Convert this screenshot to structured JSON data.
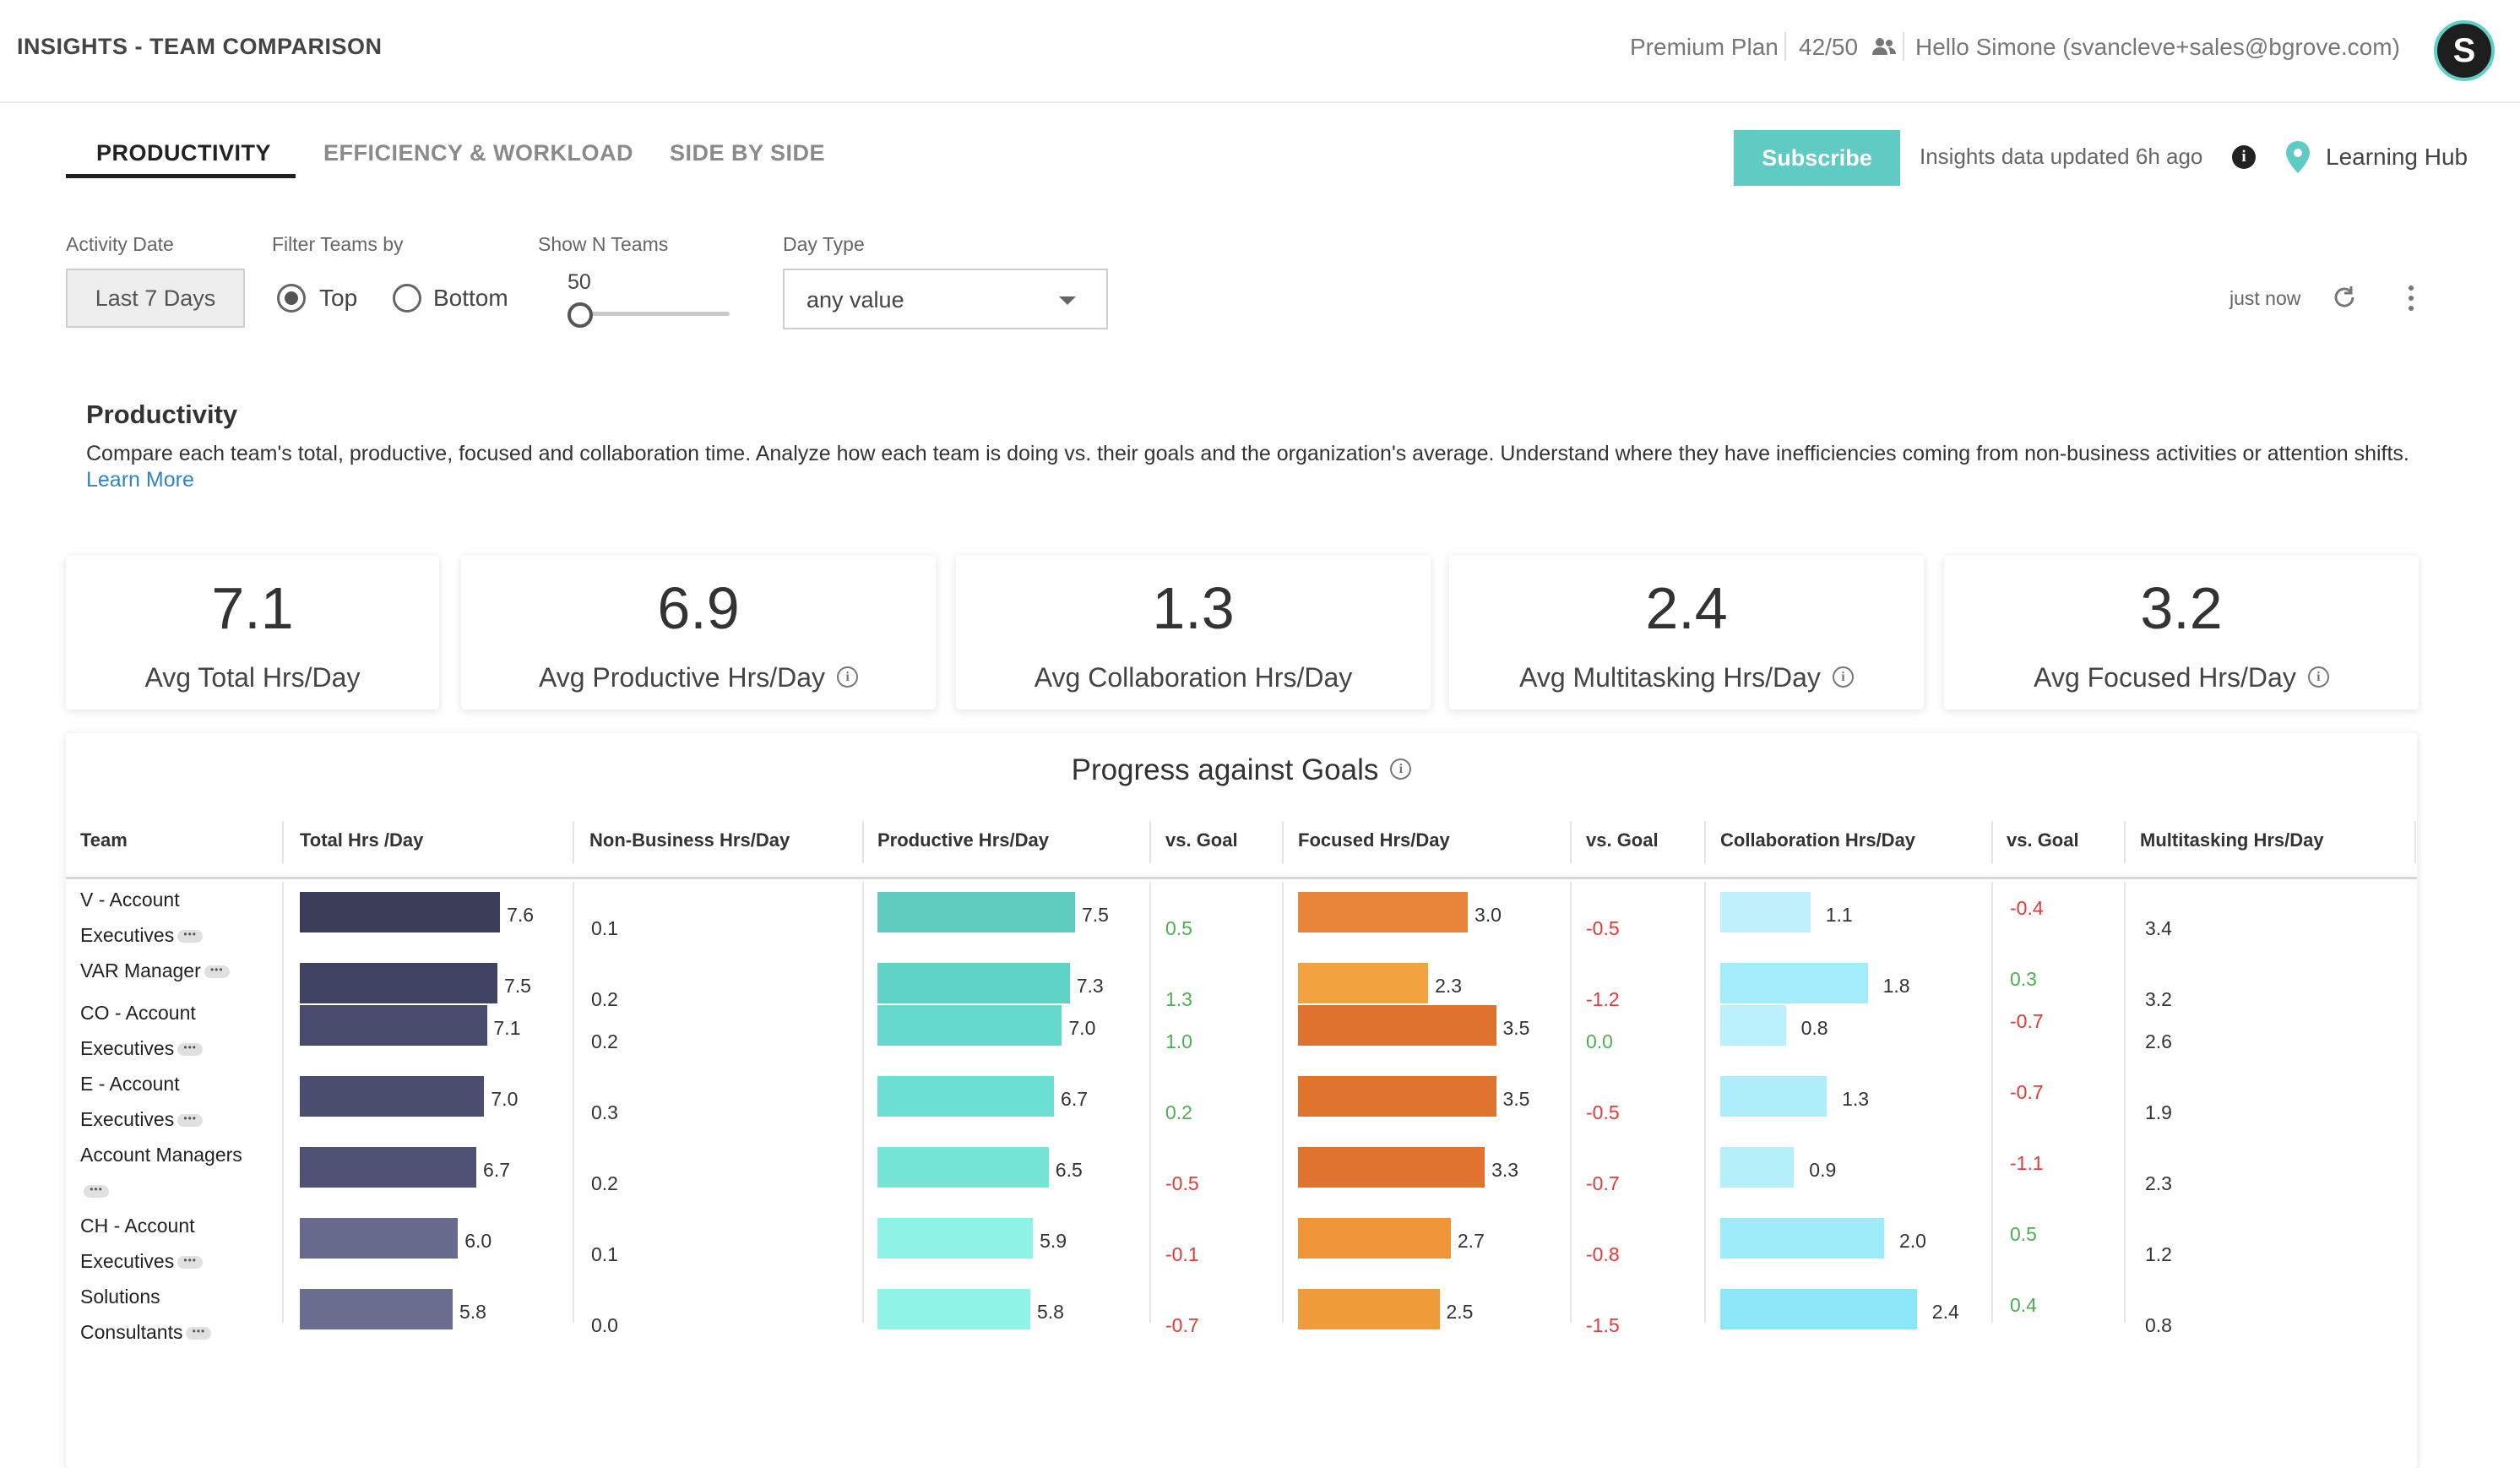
{
  "header": {
    "title": "INSIGHTS - TEAM COMPARISON",
    "plan": "Premium Plan",
    "seats": "42/50",
    "greeting": "Hello Simone (svancleve+sales@bgrove.com)",
    "avatar_letter": "S"
  },
  "tabs": [
    {
      "label": "PRODUCTIVITY",
      "active": true
    },
    {
      "label": "EFFICIENCY & WORKLOAD",
      "active": false
    },
    {
      "label": "SIDE BY SIDE",
      "active": false
    }
  ],
  "toolbar": {
    "subscribe_label": "Subscribe",
    "updated_text": "Insights data updated 6h ago",
    "learning_hub": "Learning Hub",
    "refreshed": "just now"
  },
  "filters": {
    "activity_date_label": "Activity Date",
    "activity_date_value": "Last 7 Days",
    "filter_teams_label": "Filter Teams by",
    "filter_options": [
      "Top",
      "Bottom"
    ],
    "filter_selected": "Top",
    "show_n_label": "Show N Teams",
    "show_n_value": "50",
    "day_type_label": "Day Type",
    "day_type_value": "any value"
  },
  "intro": {
    "title": "Productivity",
    "description": "Compare each team's total, productive, focused and collaboration time. Analyze how each team is doing vs. their goals and the organization's average. Understand where they have inefficiencies coming from non-business activities or attention shifts.",
    "learn_more": "Learn More"
  },
  "kpis": [
    {
      "value": "7.1",
      "label": "Avg Total Hrs/Day",
      "info": false
    },
    {
      "value": "6.9",
      "label": "Avg Productive Hrs/Day",
      "info": true
    },
    {
      "value": "1.3",
      "label": "Avg Collaboration Hrs/Day",
      "info": false
    },
    {
      "value": "2.4",
      "label": "Avg Multitasking Hrs/Day",
      "info": true
    },
    {
      "value": "3.2",
      "label": "Avg Focused Hrs/Day",
      "info": true
    }
  ],
  "table": {
    "title": "Progress against Goals",
    "columns": [
      "Team",
      "Total Hrs /Day",
      "Non-Business Hrs/Day",
      "Productive Hrs/Day",
      "vs. Goal",
      "Focused Hrs/Day",
      "vs. Goal",
      "Collaboration Hrs/Day",
      "vs. Goal",
      "Multitasking Hrs/Day"
    ],
    "rows": [
      {
        "team": [
          "V - Account",
          "Executives"
        ],
        "total": "7.6",
        "nonbusiness": "0.1",
        "productive": "7.5",
        "prod_goal": "0.5",
        "focused": "3.0",
        "focus_goal": "-0.5",
        "collab": "1.1",
        "collab_goal": "-0.4",
        "multitask": "3.4"
      },
      {
        "team": [
          "VAR Manager"
        ],
        "total": "7.5",
        "nonbusiness": "0.2",
        "productive": "7.3",
        "prod_goal": "1.3",
        "focused": "2.3",
        "focus_goal": "-1.2",
        "collab": "1.8",
        "collab_goal": "0.3",
        "multitask": "3.2"
      },
      {
        "team": [
          "CO - Account",
          "Executives"
        ],
        "total": "7.1",
        "nonbusiness": "0.2",
        "productive": "7.0",
        "prod_goal": "1.0",
        "focused": "3.5",
        "focus_goal": "0.0",
        "collab": "0.8",
        "collab_goal": "-0.7",
        "multitask": "2.6"
      },
      {
        "team": [
          "E - Account",
          "Executives"
        ],
        "total": "7.0",
        "nonbusiness": "0.3",
        "productive": "6.7",
        "prod_goal": "0.2",
        "focused": "3.5",
        "focus_goal": "-0.5",
        "collab": "1.3",
        "collab_goal": "-0.7",
        "multitask": "1.9"
      },
      {
        "team": [
          "Account Managers",
          ""
        ],
        "total": "6.7",
        "nonbusiness": "0.2",
        "productive": "6.5",
        "prod_goal": "-0.5",
        "focused": "3.3",
        "focus_goal": "-0.7",
        "collab": "0.9",
        "collab_goal": "-1.1",
        "multitask": "2.3"
      },
      {
        "team": [
          "CH - Account",
          "Executives"
        ],
        "total": "6.0",
        "nonbusiness": "0.1",
        "productive": "5.9",
        "prod_goal": "-0.1",
        "focused": "2.7",
        "focus_goal": "-0.8",
        "collab": "2.0",
        "collab_goal": "0.5",
        "multitask": "1.2"
      },
      {
        "team": [
          "Solutions",
          "Consultants"
        ],
        "total": "5.8",
        "nonbusiness": "0.0",
        "productive": "5.8",
        "prod_goal": "-0.7",
        "focused": "2.5",
        "focus_goal": "-1.5",
        "collab": "2.4",
        "collab_goal": "0.4",
        "multitask": "0.8"
      }
    ]
  },
  "colors": {
    "accent": "#5fcbc3",
    "positive": "#4caf50",
    "negative": "#e53935",
    "total_bars": [
      "#3a3d55",
      "#3f4260",
      "#484b6b",
      "#4a4d6e",
      "#4e5173",
      "#676a8c",
      "#6a6d8e"
    ],
    "productive_bars": [
      "#5ecdc0",
      "#5fd3c6",
      "#63d8cb",
      "#6adfd1",
      "#74e4d6",
      "#8ff2e6",
      "#8ff3e6"
    ],
    "focused_bars": [
      "#e8853a",
      "#f2a33f",
      "#e0722f",
      "#e0742f",
      "#e07330",
      "#ee9538",
      "#f09b3a"
    ],
    "collab_bars": [
      "#bff1fb",
      "#a3ecfa",
      "#baf0fb",
      "#aeeefa",
      "#b4effa",
      "#9eebfa",
      "#8ce7f8"
    ]
  },
  "icons": {
    "people": "people-icon",
    "info": "info-icon",
    "pin": "location-pin-icon",
    "refresh": "refresh-icon",
    "more": "kebab-menu-icon"
  }
}
